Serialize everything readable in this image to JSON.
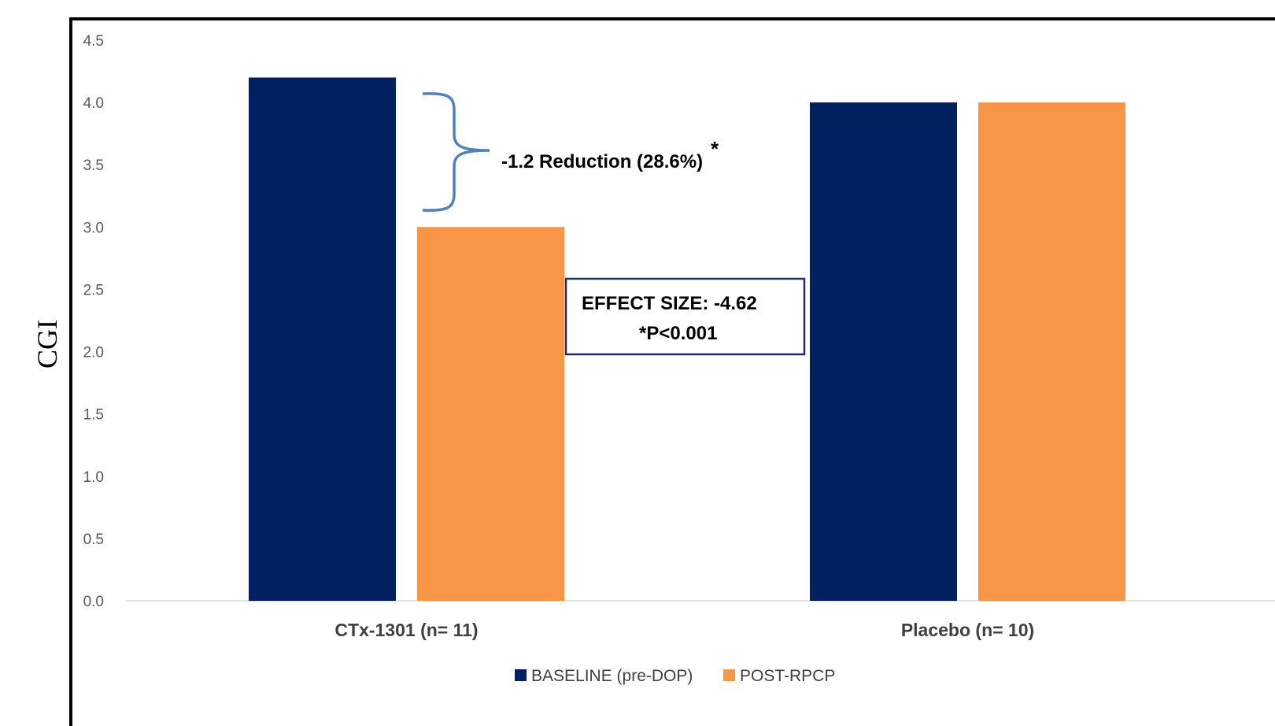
{
  "chart_data": {
    "type": "bar",
    "categories": [
      "CTx-1301 (n= 11)",
      "Placebo (n= 10)"
    ],
    "series": [
      {
        "name": "BASELINE (pre-DOP)",
        "values": [
          4.2,
          4.0
        ],
        "color": "#002060"
      },
      {
        "name": "POST-RPCP",
        "values": [
          3.0,
          4.0
        ],
        "color": "#F79646"
      }
    ],
    "ylabel": "CGI",
    "ylim": [
      0,
      4.5
    ],
    "yticks": [
      "0.0",
      "0.5",
      "1.0",
      "1.5",
      "2.0",
      "2.5",
      "3.0",
      "3.5",
      "4.0",
      "4.5"
    ],
    "grid": false,
    "legend_position": "bottom",
    "annotations": {
      "reduction": "-1.2 Reduction (28.6%)",
      "reduction_mark": "*",
      "effect_size": "EFFECT SIZE: -4.62",
      "p_value": "*P<0.001"
    }
  }
}
